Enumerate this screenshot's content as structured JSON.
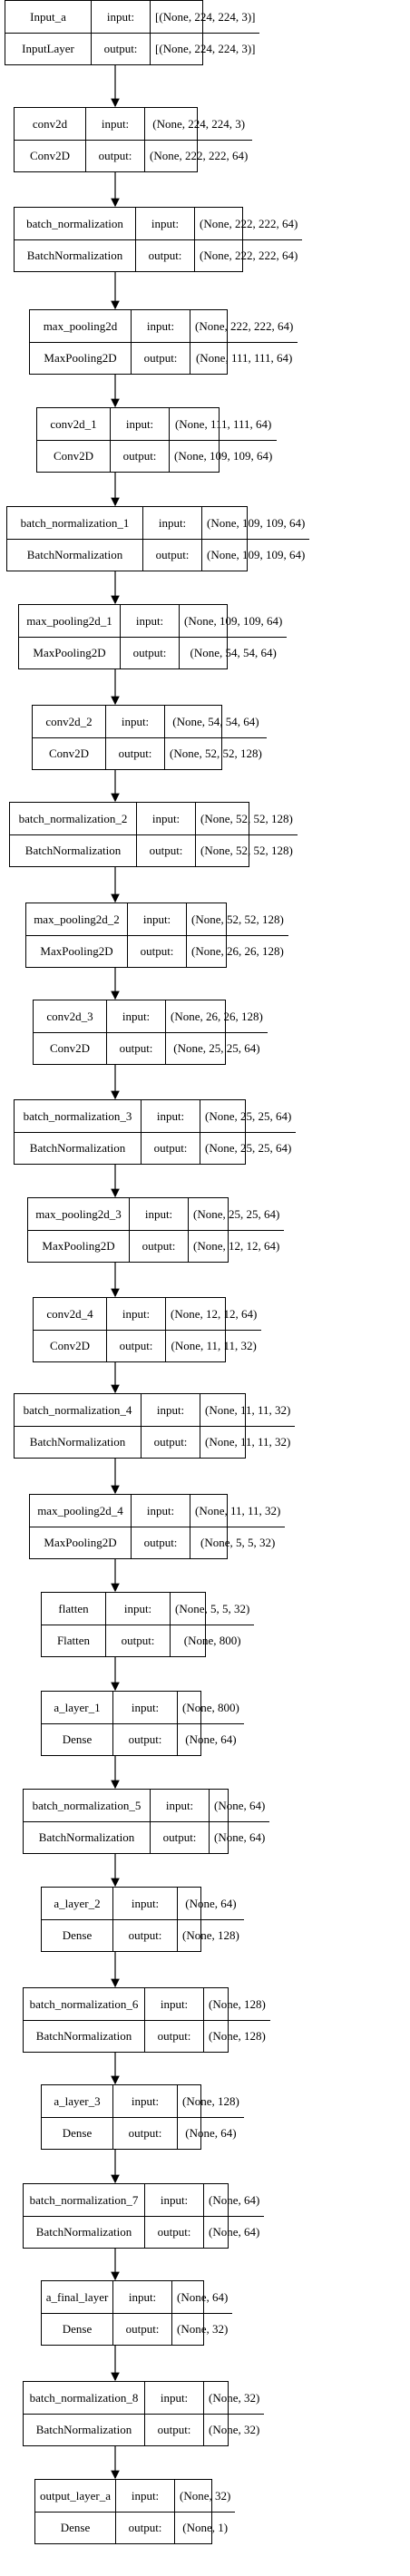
{
  "diagram": {
    "in_label": "input:",
    "out_label": "output:",
    "layers": [
      {
        "name": "Input_a",
        "type": "InputLayer",
        "input": "[(None, 224, 224, 3)]",
        "output": "[(None, 224, 224, 3)]"
      },
      {
        "name": "conv2d",
        "type": "Conv2D",
        "input": "(None, 224, 224, 3)",
        "output": "(None, 222, 222, 64)"
      },
      {
        "name": "batch_normalization",
        "type": "BatchNormalization",
        "input": "(None, 222, 222, 64)",
        "output": "(None, 222, 222, 64)"
      },
      {
        "name": "max_pooling2d",
        "type": "MaxPooling2D",
        "input": "(None, 222, 222, 64)",
        "output": "(None, 111, 111, 64)"
      },
      {
        "name": "conv2d_1",
        "type": "Conv2D",
        "input": "(None, 111, 111, 64)",
        "output": "(None, 109, 109, 64)"
      },
      {
        "name": "batch_normalization_1",
        "type": "BatchNormalization",
        "input": "(None, 109, 109, 64)",
        "output": "(None, 109, 109, 64)"
      },
      {
        "name": "max_pooling2d_1",
        "type": "MaxPooling2D",
        "input": "(None, 109, 109, 64)",
        "output": "(None, 54, 54, 64)"
      },
      {
        "name": "conv2d_2",
        "type": "Conv2D",
        "input": "(None, 54, 54, 64)",
        "output": "(None, 52, 52, 128)"
      },
      {
        "name": "batch_normalization_2",
        "type": "BatchNormalization",
        "input": "(None, 52, 52, 128)",
        "output": "(None, 52, 52, 128)"
      },
      {
        "name": "max_pooling2d_2",
        "type": "MaxPooling2D",
        "input": "(None, 52, 52, 128)",
        "output": "(None, 26, 26, 128)"
      },
      {
        "name": "conv2d_3",
        "type": "Conv2D",
        "input": "(None, 26, 26, 128)",
        "output": "(None, 25, 25, 64)"
      },
      {
        "name": "batch_normalization_3",
        "type": "BatchNormalization",
        "input": "(None, 25, 25, 64)",
        "output": "(None, 25, 25, 64)"
      },
      {
        "name": "max_pooling2d_3",
        "type": "MaxPooling2D",
        "input": "(None, 25, 25, 64)",
        "output": "(None, 12, 12, 64)"
      },
      {
        "name": "conv2d_4",
        "type": "Conv2D",
        "input": "(None, 12, 12, 64)",
        "output": "(None, 11, 11, 32)"
      },
      {
        "name": "batch_normalization_4",
        "type": "BatchNormalization",
        "input": "(None, 11, 11, 32)",
        "output": "(None, 11, 11, 32)"
      },
      {
        "name": "max_pooling2d_4",
        "type": "MaxPooling2D",
        "input": "(None, 11, 11, 32)",
        "output": "(None, 5, 5, 32)"
      },
      {
        "name": "flatten",
        "type": "Flatten",
        "input": "(None, 5, 5, 32)",
        "output": "(None, 800)"
      },
      {
        "name": "a_layer_1",
        "type": "Dense",
        "input": "(None, 800)",
        "output": "(None, 64)"
      },
      {
        "name": "batch_normalization_5",
        "type": "BatchNormalization",
        "input": "(None, 64)",
        "output": "(None, 64)"
      },
      {
        "name": "a_layer_2",
        "type": "Dense",
        "input": "(None, 64)",
        "output": "(None, 128)"
      },
      {
        "name": "batch_normalization_6",
        "type": "BatchNormalization",
        "input": "(None, 128)",
        "output": "(None, 128)"
      },
      {
        "name": "a_layer_3",
        "type": "Dense",
        "input": "(None, 128)",
        "output": "(None, 64)"
      },
      {
        "name": "batch_normalization_7",
        "type": "BatchNormalization",
        "input": "(None, 64)",
        "output": "(None, 64)"
      },
      {
        "name": "a_final_layer",
        "type": "Dense",
        "input": "(None, 64)",
        "output": "(None, 32)"
      },
      {
        "name": "batch_normalization_8",
        "type": "BatchNormalization",
        "input": "(None, 32)",
        "output": "(None, 32)"
      },
      {
        "name": "output_layer_a",
        "type": "Dense",
        "input": "(None, 32)",
        "output": "(None, 1)"
      }
    ]
  }
}
